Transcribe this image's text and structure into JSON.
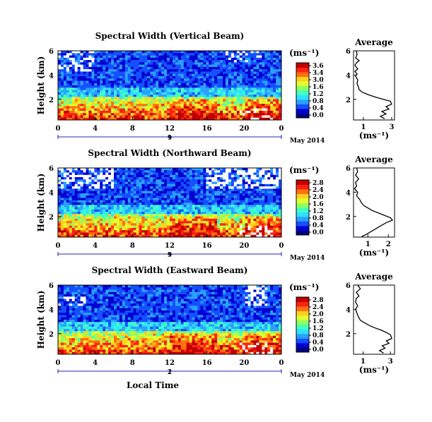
{
  "colors": {
    "colormap": [
      "#000080",
      "#0000d0",
      "#1450ff",
      "#2aa0ff",
      "#30e0ff",
      "#40ffc0",
      "#90ff60",
      "#e0ff30",
      "#ffd020",
      "#ff7010",
      "#ff2010",
      "#c00000"
    ],
    "masked": "#ffffff",
    "line": "#000000",
    "date_axis": "#2020c0"
  },
  "chart_data": [
    {
      "type": "heatmap",
      "title": "Spectral Width (Vertical Beam)",
      "ylabel": "Height (km)",
      "y_ticks": [
        "6",
        "4",
        "2"
      ],
      "x_ticks": [
        "0",
        "4",
        "8",
        "12",
        "16",
        "20",
        "0"
      ],
      "xlim": [
        0,
        24
      ],
      "ylim": [
        0.3,
        6.0
      ],
      "date_day": "9",
      "date_label": "May 2014",
      "colorbar": {
        "unit": "(ms⁻¹)",
        "ticks": [
          "3.6",
          "3.4",
          "3.0",
          "1.6",
          "1.2",
          "0.8",
          "0.4",
          "0.0"
        ],
        "range": [
          0.0,
          3.6
        ]
      },
      "profile": {
        "title": "Average",
        "xlabel": "(ms⁻¹)",
        "x_ticks": [
          "1",
          "3"
        ],
        "x_tick_values": [
          1,
          3
        ],
        "xlim": [
          0.3,
          3.2
        ],
        "y_ticks": [
          "6",
          "4",
          "2"
        ],
        "ylim": [
          0.3,
          6.0
        ],
        "points": [
          [
            0.5,
            6.0
          ],
          [
            0.55,
            5.7
          ],
          [
            0.45,
            5.4
          ],
          [
            0.7,
            5.2
          ],
          [
            0.5,
            5.0
          ],
          [
            0.4,
            4.8
          ],
          [
            0.6,
            4.5
          ],
          [
            0.4,
            4.3
          ],
          [
            0.55,
            4.1
          ],
          [
            0.45,
            3.9
          ],
          [
            0.6,
            3.6
          ],
          [
            0.55,
            3.3
          ],
          [
            0.65,
            3.0
          ],
          [
            0.7,
            2.8
          ],
          [
            0.9,
            2.6
          ],
          [
            1.3,
            2.4
          ],
          [
            1.8,
            2.2
          ],
          [
            2.4,
            2.0
          ],
          [
            2.9,
            1.85
          ],
          [
            3.0,
            1.6
          ],
          [
            2.6,
            1.4
          ],
          [
            2.8,
            1.2
          ],
          [
            2.3,
            1.0
          ],
          [
            2.6,
            0.8
          ],
          [
            2.2,
            0.6
          ],
          [
            2.5,
            0.4
          ]
        ]
      }
    },
    {
      "type": "heatmap",
      "title": "Spectral Width (Northward Beam)",
      "ylabel": "Height (km)",
      "y_ticks": [
        "6",
        "4",
        "2"
      ],
      "x_ticks": [
        "0",
        "4",
        "8",
        "12",
        "16",
        "20",
        "0"
      ],
      "xlim": [
        0,
        24
      ],
      "ylim": [
        0.3,
        6.0
      ],
      "date_day": "9",
      "date_label": "May 2014",
      "colorbar": {
        "unit": "(ms⁻¹)",
        "ticks": [
          "2.8",
          "2.4",
          "2.0",
          "1.6",
          "1.2",
          "0.8",
          "0.4",
          "0.0"
        ],
        "range": [
          0.0,
          2.8
        ]
      },
      "profile": {
        "title": "Average",
        "xlabel": "(ms⁻¹)",
        "x_ticks": [
          "1",
          "2"
        ],
        "x_tick_values": [
          1,
          2
        ],
        "xlim": [
          0.3,
          2.3
        ],
        "y_ticks": [
          "6",
          "4",
          "2"
        ],
        "ylim": [
          0.3,
          6.0
        ],
        "points": [
          [
            0.45,
            6.0
          ],
          [
            0.5,
            5.7
          ],
          [
            0.4,
            5.4
          ],
          [
            0.55,
            5.1
          ],
          [
            0.4,
            4.8
          ],
          [
            0.45,
            4.5
          ],
          [
            0.35,
            4.3
          ],
          [
            0.5,
            4.0
          ],
          [
            0.45,
            3.7
          ],
          [
            0.6,
            3.4
          ],
          [
            0.7,
            3.1
          ],
          [
            0.8,
            2.9
          ],
          [
            1.0,
            2.7
          ],
          [
            1.2,
            2.5
          ],
          [
            1.5,
            2.3
          ],
          [
            1.8,
            2.1
          ],
          [
            2.1,
            1.9
          ],
          [
            2.2,
            1.7
          ],
          [
            1.9,
            1.5
          ],
          [
            1.7,
            1.3
          ],
          [
            1.5,
            1.1
          ],
          [
            1.3,
            0.9
          ],
          [
            1.1,
            0.7
          ],
          [
            0.9,
            0.5
          ],
          [
            0.7,
            0.35
          ]
        ]
      }
    },
    {
      "type": "heatmap",
      "title": "Spectral Width (Eastward Beam)",
      "ylabel": "Height (km)",
      "y_ticks": [
        "6",
        "4",
        "2"
      ],
      "x_ticks": [
        "0",
        "4",
        "8",
        "12",
        "16",
        "20",
        "0"
      ],
      "xlim": [
        0,
        24
      ],
      "ylim": [
        0.3,
        6.0
      ],
      "date_day": "2",
      "date_label": "May 2014",
      "xlabel": "Local Time",
      "colorbar": {
        "unit": "(ms⁻¹)",
        "ticks": [
          "2.8",
          "2.4",
          "2.0",
          "1.6",
          "1.2",
          "0.8",
          "0.4",
          "0.0"
        ],
        "range": [
          0.0,
          2.8
        ]
      },
      "profile": {
        "title": "Average",
        "xlabel": "(ms⁻¹)",
        "x_ticks": [
          "1",
          "3"
        ],
        "x_tick_values": [
          1,
          3
        ],
        "xlim": [
          0.3,
          3.3
        ],
        "y_ticks": [
          "6",
          "4",
          "2"
        ],
        "ylim": [
          0.3,
          6.0
        ],
        "points": [
          [
            0.6,
            6.0
          ],
          [
            0.8,
            5.7
          ],
          [
            0.5,
            5.4
          ],
          [
            0.7,
            5.1
          ],
          [
            0.5,
            4.9
          ],
          [
            0.45,
            4.6
          ],
          [
            0.6,
            4.3
          ],
          [
            0.45,
            4.0
          ],
          [
            0.55,
            3.7
          ],
          [
            0.65,
            3.4
          ],
          [
            0.8,
            3.1
          ],
          [
            1.1,
            2.9
          ],
          [
            1.4,
            2.7
          ],
          [
            1.8,
            2.5
          ],
          [
            2.3,
            2.3
          ],
          [
            2.7,
            2.1
          ],
          [
            3.0,
            1.9
          ],
          [
            3.1,
            1.6
          ],
          [
            2.7,
            1.4
          ],
          [
            2.9,
            1.2
          ],
          [
            2.4,
            1.0
          ],
          [
            2.6,
            0.8
          ],
          [
            2.2,
            0.6
          ],
          [
            2.5,
            0.4
          ]
        ]
      }
    }
  ]
}
